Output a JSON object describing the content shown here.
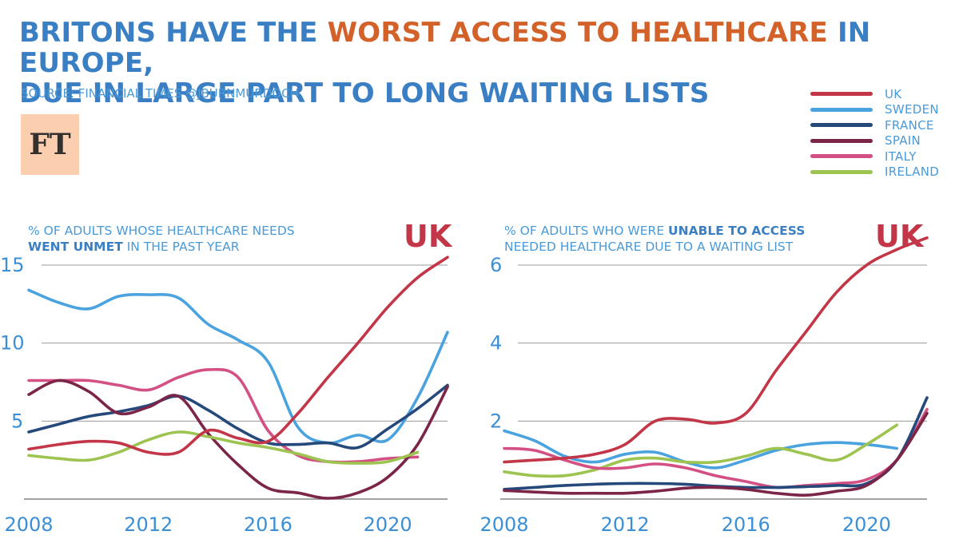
{
  "title": {
    "part1": "BRITONS HAVE THE ",
    "highlight": "WORST ACCESS TO HEALTHCARE",
    "part2": " IN EUROPE,",
    "line2": "DUE IN LARGE PART TO LONG WAITING LISTS"
  },
  "source": "SOURCE: FINANCIAL TIMES @JBURNMURDOCH",
  "logo": "FT",
  "colors": {
    "UK": "#c33648",
    "SWEDEN": "#4aa3df",
    "FRANCE": "#25497a",
    "SPAIN": "#7b2548",
    "ITALY": "#d44f83",
    "IRELAND": "#9dc350"
  },
  "legend": [
    "UK",
    "SWEDEN",
    "FRANCE",
    "SPAIN",
    "ITALY",
    "IRELAND"
  ],
  "chart_data": [
    {
      "type": "line",
      "subtitle_line1": "% OF ADULTS WHOSE HEALTHCARE NEEDS",
      "subtitle_line2_bold": "WENT UNMET",
      "subtitle_line2_rest": " IN THE PAST YEAR",
      "callout": "UK",
      "xticks": [
        "2008",
        "2012",
        "2016",
        "2020"
      ],
      "yticks": [
        "5",
        "10",
        "15"
      ],
      "xlim": [
        2008,
        2022
      ],
      "ylim": [
        0,
        15
      ],
      "grid": true,
      "series": [
        {
          "name": "SWEDEN",
          "x": [
            2008,
            2009,
            2010,
            2011,
            2012,
            2013,
            2014,
            2015,
            2016,
            2017,
            2018,
            2019,
            2020,
            2021,
            2022
          ],
          "y": [
            13.4,
            12.6,
            12.2,
            13.0,
            13.1,
            12.9,
            11.2,
            10.2,
            8.8,
            4.6,
            3.6,
            4.1,
            3.8,
            6.5,
            10.7
          ]
        },
        {
          "name": "ITALY",
          "x": [
            2008,
            2009,
            2010,
            2011,
            2012,
            2013,
            2014,
            2015,
            2016,
            2017,
            2018,
            2019,
            2020,
            2021
          ],
          "y": [
            7.6,
            7.6,
            7.6,
            7.3,
            7.0,
            7.8,
            8.3,
            7.8,
            4.4,
            2.8,
            2.4,
            2.4,
            2.6,
            2.7
          ]
        },
        {
          "name": "FRANCE",
          "x": [
            2008,
            2009,
            2010,
            2011,
            2012,
            2013,
            2014,
            2015,
            2016,
            2017,
            2018,
            2019,
            2020,
            2021,
            2022
          ],
          "y": [
            4.3,
            4.8,
            5.3,
            5.6,
            6.0,
            6.6,
            5.7,
            4.5,
            3.6,
            3.5,
            3.6,
            3.3,
            4.5,
            5.8,
            7.3
          ]
        },
        {
          "name": "SPAIN",
          "x": [
            2008,
            2009,
            2010,
            2011,
            2012,
            2013,
            2014,
            2015,
            2016,
            2017,
            2018,
            2019,
            2020,
            2021,
            2022
          ],
          "y": [
            6.7,
            7.6,
            6.9,
            5.5,
            5.9,
            6.6,
            4.2,
            2.2,
            0.7,
            0.4,
            0.05,
            0.4,
            1.4,
            3.5,
            7.2
          ]
        },
        {
          "name": "IRELAND",
          "x": [
            2008,
            2009,
            2010,
            2011,
            2012,
            2013,
            2014,
            2015,
            2016,
            2017,
            2018,
            2019,
            2020,
            2021
          ],
          "y": [
            2.8,
            2.6,
            2.5,
            3.0,
            3.8,
            4.3,
            4.0,
            3.6,
            3.3,
            2.9,
            2.4,
            2.3,
            2.4,
            3.0
          ]
        },
        {
          "name": "UK",
          "x": [
            2008,
            2009,
            2010,
            2011,
            2012,
            2013,
            2014,
            2015,
            2016,
            2017,
            2018,
            2019,
            2020,
            2021,
            2022
          ],
          "y": [
            3.2,
            3.5,
            3.7,
            3.6,
            3.0,
            3.0,
            4.4,
            3.9,
            3.7,
            5.5,
            7.8,
            10.0,
            12.3,
            14.2,
            15.5
          ]
        }
      ]
    },
    {
      "type": "line",
      "subtitle_line1_rest": "% OF ADULTS WHO WERE ",
      "subtitle_line1_bold": "UNABLE TO ACCESS",
      "subtitle_line2": "NEEDED HEALTHCARE DUE TO A WAITING LIST",
      "callout": "UK",
      "xticks": [
        "2008",
        "2012",
        "2016",
        "2020"
      ],
      "yticks": [
        "2",
        "4",
        "6"
      ],
      "xlim": [
        2008,
        2022
      ],
      "ylim": [
        0,
        6
      ],
      "grid": true,
      "series": [
        {
          "name": "SWEDEN",
          "x": [
            2008,
            2009,
            2010,
            2011,
            2012,
            2013,
            2014,
            2015,
            2016,
            2017,
            2018,
            2019,
            2020,
            2021
          ],
          "y": [
            1.75,
            1.5,
            1.1,
            0.95,
            1.15,
            1.2,
            0.95,
            0.8,
            1.0,
            1.25,
            1.4,
            1.45,
            1.4,
            1.3
          ]
        },
        {
          "name": "IRELAND",
          "x": [
            2008,
            2009,
            2010,
            2011,
            2012,
            2013,
            2014,
            2015,
            2016,
            2017,
            2018,
            2019,
            2020,
            2021
          ],
          "y": [
            0.7,
            0.6,
            0.6,
            0.75,
            1.0,
            1.05,
            0.95,
            0.95,
            1.1,
            1.3,
            1.15,
            1.0,
            1.4,
            1.9
          ]
        },
        {
          "name": "ITALY",
          "x": [
            2008,
            2009,
            2010,
            2011,
            2012,
            2013,
            2014,
            2015,
            2016,
            2017,
            2018,
            2019,
            2020,
            2021,
            2022
          ],
          "y": [
            1.3,
            1.25,
            1.0,
            0.8,
            0.8,
            0.9,
            0.8,
            0.6,
            0.45,
            0.3,
            0.35,
            0.4,
            0.5,
            1.0,
            2.3
          ]
        },
        {
          "name": "FRANCE",
          "x": [
            2008,
            2009,
            2010,
            2011,
            2012,
            2013,
            2014,
            2015,
            2016,
            2017,
            2018,
            2019,
            2020,
            2021,
            2022
          ],
          "y": [
            0.25,
            0.3,
            0.35,
            0.38,
            0.4,
            0.4,
            0.38,
            0.33,
            0.3,
            0.3,
            0.32,
            0.35,
            0.4,
            1.0,
            2.6
          ]
        },
        {
          "name": "SPAIN",
          "x": [
            2008,
            2009,
            2010,
            2011,
            2012,
            2013,
            2014,
            2015,
            2016,
            2017,
            2018,
            2019,
            2020,
            2021,
            2022
          ],
          "y": [
            0.22,
            0.18,
            0.15,
            0.15,
            0.15,
            0.2,
            0.28,
            0.3,
            0.25,
            0.15,
            0.1,
            0.2,
            0.35,
            1.0,
            2.2
          ]
        },
        {
          "name": "UK",
          "x": [
            2008,
            2009,
            2010,
            2011,
            2012,
            2013,
            2014,
            2015,
            2016,
            2017,
            2018,
            2019,
            2020,
            2021,
            2022
          ],
          "y": [
            0.95,
            1.0,
            1.05,
            1.15,
            1.4,
            2.0,
            2.05,
            1.95,
            2.2,
            3.3,
            4.3,
            5.3,
            6.0,
            6.4,
            6.7
          ]
        }
      ]
    }
  ]
}
